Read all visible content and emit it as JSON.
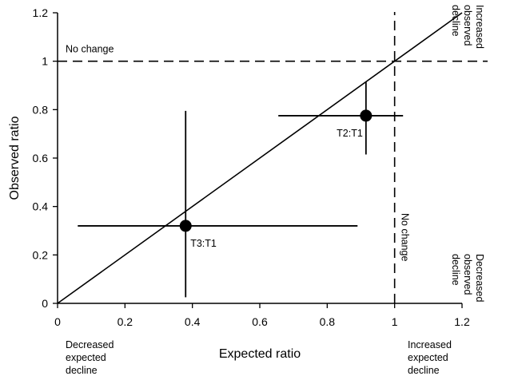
{
  "chart_data": {
    "type": "scatter",
    "title": "",
    "xlabel": "Expected ratio",
    "ylabel": "Observed ratio",
    "xlim": [
      0,
      1.2
    ],
    "ylim": [
      0,
      1.2
    ],
    "xticks": [
      "0",
      "0.2",
      "0.4",
      "0.6",
      "0.8",
      "1",
      "1.2"
    ],
    "yticks": [
      "0",
      "0.2",
      "0.4",
      "0.6",
      "0.8",
      "1",
      "1.2"
    ],
    "points": [
      {
        "label": "T2:T1",
        "x": 0.915,
        "y": 0.775,
        "x_err_low": 0.655,
        "x_err_high": 1.025,
        "y_err_low": 0.615,
        "y_err_high": 0.915
      },
      {
        "label": "T3:T1",
        "x": 0.38,
        "y": 0.32,
        "x_err_low": 0.06,
        "x_err_high": 0.89,
        "y_err_low": 0.025,
        "y_err_high": 0.795
      }
    ],
    "identity_line": {
      "from": [
        0,
        0
      ],
      "to": [
        1.2,
        1.2
      ]
    },
    "reference_lines": [
      {
        "orientation": "horizontal",
        "value": 1,
        "style": "dashed",
        "label": "No change"
      },
      {
        "orientation": "vertical",
        "value": 1,
        "style": "dashed",
        "label": "No change"
      }
    ],
    "annotations": {
      "top_right": "Increased\nobserved\ndecline",
      "bottom_right": "Decreased\nobserved\ndecline",
      "bottom_left": "Decreased\nexpected\ndecline",
      "bottom_right_x": "Increased\nexpected\ndecline"
    }
  }
}
